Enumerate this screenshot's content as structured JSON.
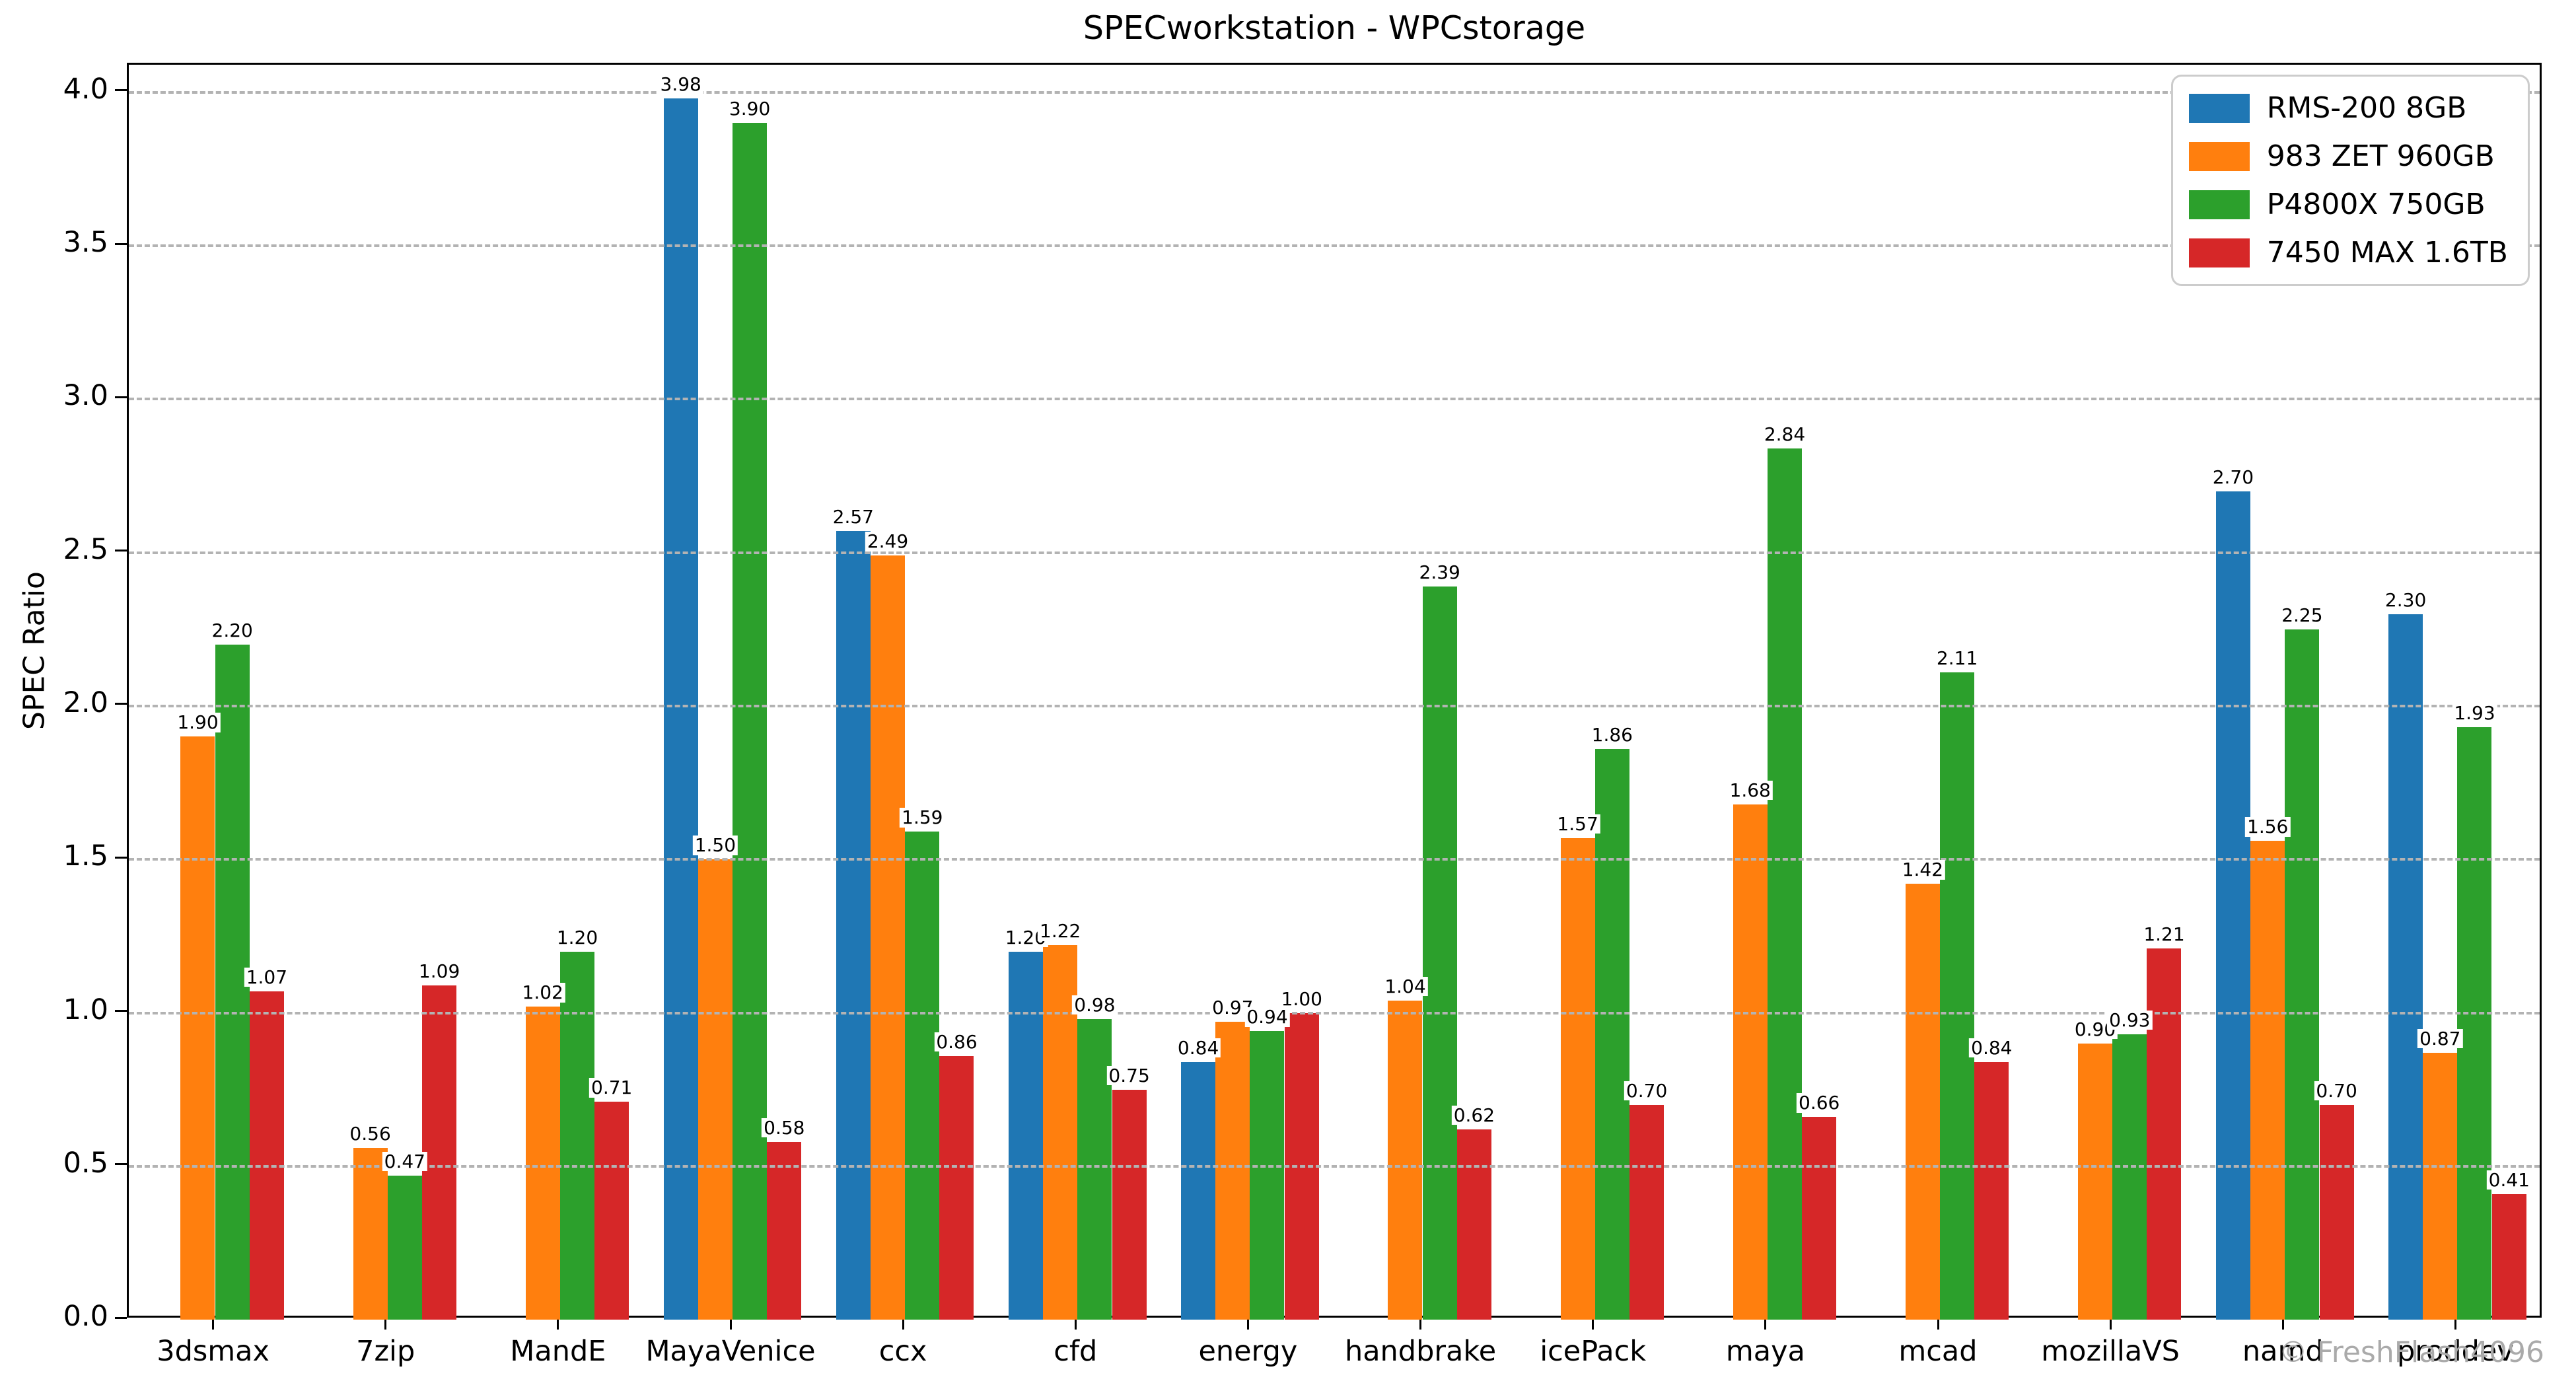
{
  "title": "SPECworkstation - WPCstorage",
  "watermark": "© FreshFlash4096",
  "chart_data": {
    "type": "bar",
    "title": "SPECworkstation - WPCstorage",
    "xlabel": "",
    "ylabel": "SPEC Ratio",
    "ylim": [
      0,
      4.09
    ],
    "yticks": [
      0.0,
      0.5,
      1.0,
      1.5,
      2.0,
      2.5,
      3.0,
      3.5,
      4.0
    ],
    "grid": "horizontal dashed gray, drawn over bars",
    "legend_position": "upper right",
    "bar_value_labels": true,
    "categories": [
      "3dsmax",
      "7zip",
      "MandE",
      "MayaVenice",
      "ccx",
      "cfd",
      "energy",
      "handbrake",
      "icePack",
      "maya",
      "mcad",
      "mozillaVS",
      "namd",
      "proddev"
    ],
    "series": [
      {
        "name": "RMS-200 8GB",
        "color": "#1f77b4",
        "values": [
          null,
          null,
          null,
          3.98,
          2.57,
          1.2,
          0.84,
          null,
          null,
          null,
          null,
          null,
          2.7,
          2.3
        ]
      },
      {
        "name": "983 ZET 960GB",
        "color": "#ff7f0e",
        "values": [
          1.9,
          0.56,
          1.02,
          1.5,
          2.49,
          1.22,
          0.97,
          1.04,
          1.57,
          1.68,
          1.42,
          0.9,
          1.56,
          0.87
        ]
      },
      {
        "name": "P4800X 750GB",
        "color": "#2ca02c",
        "values": [
          2.2,
          0.47,
          1.2,
          3.9,
          1.59,
          0.98,
          0.94,
          2.39,
          1.86,
          2.84,
          2.11,
          0.93,
          2.25,
          1.93
        ]
      },
      {
        "name": "7450 MAX 1.6TB",
        "color": "#d62728",
        "values": [
          1.07,
          1.09,
          0.71,
          0.58,
          0.86,
          0.75,
          1.0,
          0.62,
          0.7,
          0.66,
          0.84,
          1.21,
          0.7,
          0.41
        ]
      }
    ]
  }
}
